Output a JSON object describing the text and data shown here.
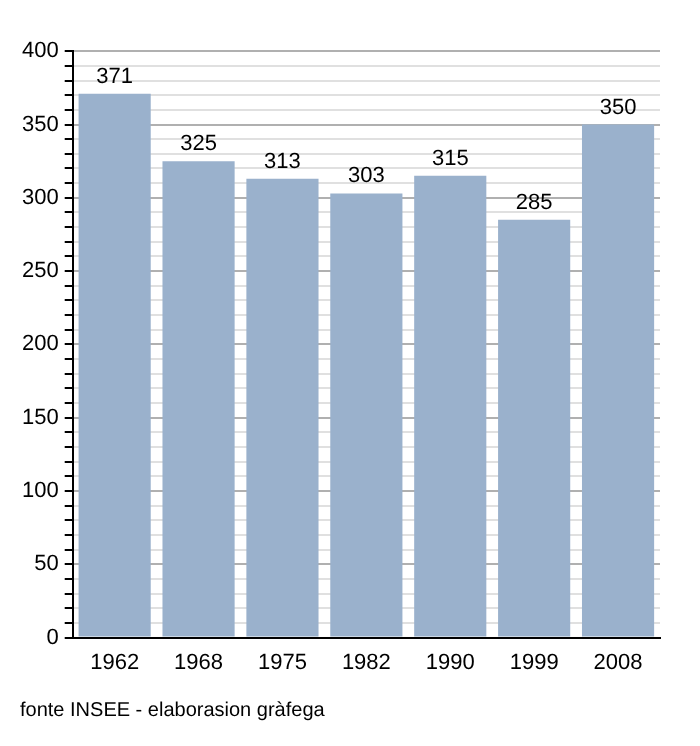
{
  "chart_data": {
    "type": "bar",
    "categories": [
      "1962",
      "1968",
      "1975",
      "1982",
      "1990",
      "1999",
      "2008"
    ],
    "values": [
      371,
      325,
      313,
      303,
      315,
      285,
      350
    ],
    "color": "#9ab1cc",
    "ylim": [
      0,
      400
    ],
    "yticks": [
      0,
      {
        "value": 10,
        "label": null
      },
      {
        "value": 20,
        "label": null
      },
      {
        "value": 30,
        "label": null
      },
      {
        "value": 40,
        "label": null
      },
      50,
      {
        "value": 60,
        "label": null
      },
      {
        "value": 70,
        "label": null
      },
      {
        "value": 80,
        "label": null
      },
      {
        "value": 90,
        "label": null
      },
      100,
      {
        "value": 110,
        "label": null
      },
      {
        "value": 120,
        "label": null
      },
      {
        "value": 130,
        "label": null
      },
      {
        "value": 140,
        "label": null
      },
      150,
      {
        "value": 160,
        "label": null
      },
      {
        "value": 170,
        "label": null
      },
      {
        "value": 180,
        "label": null
      },
      {
        "value": 190,
        "label": null
      },
      200,
      {
        "value": 210,
        "label": null
      },
      {
        "value": 220,
        "label": null
      },
      {
        "value": 230,
        "label": null
      },
      {
        "value": 240,
        "label": null
      },
      250,
      {
        "value": 260,
        "label": null
      },
      {
        "value": 270,
        "label": null
      },
      {
        "value": 280,
        "label": null
      },
      {
        "value": 290,
        "label": null
      },
      300,
      {
        "value": 310,
        "label": null
      },
      {
        "value": 320,
        "label": null
      },
      {
        "value": 330,
        "label": null
      },
      {
        "value": 340,
        "label": null
      },
      350,
      {
        "value": 360,
        "label": null
      },
      {
        "value": 370,
        "label": null
      },
      {
        "value": 380,
        "label": null
      },
      {
        "value": 390,
        "label": null
      },
      400
    ],
    "grid": "y",
    "data_labels": true,
    "annotations": [
      "fonte INSEE - elaborasion gràfega"
    ]
  }
}
